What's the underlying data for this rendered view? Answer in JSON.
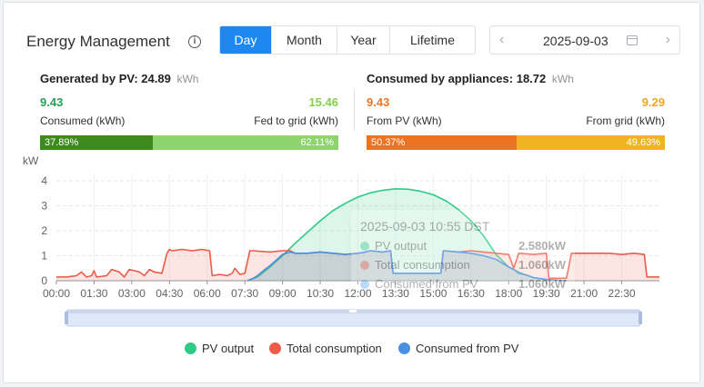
{
  "header": {
    "title": "Energy Management",
    "tabs": [
      {
        "label": "Day",
        "active": true
      },
      {
        "label": "Month",
        "active": false
      },
      {
        "label": "Year",
        "active": false
      },
      {
        "label": "Lifetime",
        "active": false
      }
    ],
    "date": "2025-09-03",
    "prev_symbol": "‹",
    "next_symbol": "›"
  },
  "generated": {
    "label": "Generated by PV:",
    "value": "24.89",
    "unit": "kWh",
    "consumed_value": "9.43",
    "fed_value": "15.46",
    "consumed_label": "Consumed (kWh)",
    "fed_label": "Fed to grid (kWh)",
    "consumed_pct": "37.89%",
    "fed_pct": "62.11%",
    "consumed_frac": 0.3789,
    "consumed_color": "#3d8b1e",
    "fed_color": "#8ed46e",
    "consumed_text_color": "#27a055",
    "fed_text_color": "#86cf4c"
  },
  "consumption": {
    "label": "Consumed by appliances:",
    "value": "18.72",
    "unit": "kWh",
    "pv_value": "9.43",
    "grid_value": "9.29",
    "pv_label": "From PV (kWh)",
    "grid_label": "From grid (kWh)",
    "pv_pct": "50.37%",
    "grid_pct": "49.63%",
    "pv_frac": 0.5037,
    "pv_color": "#ee7320",
    "grid_color": "#f0b423",
    "pv_text_color": "#e8772a",
    "grid_text_color": "#e9a825"
  },
  "tooltip": {
    "title": "2025-09-03 10:55 DST",
    "rows": [
      {
        "name": "PV output",
        "value": "2.580kW",
        "color": "#36c98a"
      },
      {
        "name": "Total consumption",
        "value": "1.060kW",
        "color": "#f06a5a"
      },
      {
        "name": "Consumed from PV",
        "value": "1.060kW",
        "color": "#4b9ff5"
      }
    ]
  },
  "chart_data": {
    "type": "area",
    "ylabel": "kW",
    "ylim": [
      0,
      4
    ],
    "yticks": [
      "0",
      "1",
      "2",
      "3",
      "4"
    ],
    "xlim": [
      0,
      24
    ],
    "xticks": [
      "00:00",
      "01:30",
      "03:00",
      "04:30",
      "06:00",
      "07:30",
      "09:00",
      "10:30",
      "12:00",
      "13:30",
      "15:00",
      "16:30",
      "18:00",
      "19:30",
      "21:00",
      "22:30"
    ],
    "grid": true,
    "legend_position": "bottom",
    "series": [
      {
        "name": "PV output",
        "color": "#2ecb86",
        "fill": "rgba(60,205,140,0.18)",
        "x": [
          7.6,
          8.0,
          8.5,
          9.0,
          9.5,
          10.0,
          10.5,
          11.0,
          11.5,
          12.0,
          12.5,
          13.0,
          13.5,
          14.0,
          14.5,
          15.0,
          15.5,
          16.0,
          16.5,
          17.0,
          17.5,
          18.0,
          18.5,
          19.0,
          19.5,
          20.0,
          20.3
        ],
        "y": [
          0.0,
          0.15,
          0.55,
          1.0,
          1.5,
          1.95,
          2.4,
          2.8,
          3.1,
          3.35,
          3.52,
          3.62,
          3.68,
          3.66,
          3.58,
          3.44,
          3.2,
          2.85,
          2.4,
          1.8,
          1.05,
          0.55,
          0.3,
          0.12,
          0.05,
          0.01,
          0.0
        ]
      },
      {
        "name": "Total consumption",
        "color": "#ee5a48",
        "fill": "rgba(240,110,95,0.18)",
        "x": [
          0.0,
          0.4,
          0.8,
          1.0,
          1.2,
          1.4,
          1.5,
          1.6,
          2.0,
          2.2,
          2.5,
          2.7,
          2.9,
          3.3,
          3.5,
          3.7,
          3.9,
          4.2,
          4.4,
          4.5,
          4.6,
          5.0,
          5.4,
          5.8,
          6.1,
          6.2,
          6.5,
          6.8,
          7.0,
          7.1,
          7.3,
          7.5,
          7.7,
          7.8,
          8.5,
          9.0,
          9.3,
          9.5,
          10.0,
          10.5,
          11.0,
          11.5,
          12.0,
          12.3,
          12.5,
          13.0,
          13.3,
          13.4,
          14.0,
          14.5,
          15.0,
          15.3,
          15.4,
          16.0,
          16.5,
          17.0,
          17.5,
          18.0,
          18.2,
          18.4,
          19.0,
          19.5,
          19.6,
          20.0,
          20.3,
          20.5,
          21.0,
          21.5,
          22.0,
          22.5,
          23.0,
          23.4,
          23.5,
          23.8,
          24.0
        ],
        "y": [
          0.15,
          0.15,
          0.2,
          0.35,
          0.15,
          0.2,
          0.4,
          0.15,
          0.2,
          0.45,
          0.35,
          0.15,
          0.45,
          0.35,
          0.2,
          0.45,
          0.35,
          0.3,
          1.1,
          1.25,
          1.2,
          1.25,
          1.2,
          1.25,
          1.2,
          0.2,
          0.25,
          0.2,
          0.3,
          0.5,
          0.25,
          0.3,
          1.2,
          1.2,
          1.15,
          1.2,
          1.2,
          1.1,
          1.1,
          1.15,
          1.1,
          1.05,
          1.1,
          1.15,
          1.2,
          1.15,
          1.2,
          0.3,
          0.3,
          0.3,
          0.3,
          0.3,
          1.2,
          1.15,
          1.2,
          1.15,
          1.1,
          1.05,
          0.5,
          1.1,
          1.05,
          1.1,
          0.1,
          0.1,
          0.1,
          1.1,
          1.1,
          1.1,
          1.1,
          1.05,
          1.1,
          1.05,
          0.15,
          0.15,
          0.15
        ]
      },
      {
        "name": "Consumed from PV",
        "color": "#4a90e2",
        "fill": "rgba(75,150,235,0.15)",
        "x": [
          7.6,
          7.8,
          8.0,
          8.3,
          8.5,
          9.0,
          9.3,
          9.5,
          10.0,
          10.5,
          11.0,
          11.5,
          12.0,
          12.3,
          12.5,
          13.0,
          13.3,
          13.4,
          14.0,
          14.5,
          15.0,
          15.3,
          15.4,
          16.0,
          16.5,
          17.0,
          17.5,
          18.0,
          18.2,
          18.4,
          18.8,
          19.0,
          19.5,
          19.6,
          20.0,
          20.3
        ],
        "y": [
          0.0,
          0.08,
          0.2,
          0.45,
          0.6,
          1.05,
          1.15,
          1.1,
          1.1,
          1.15,
          1.1,
          1.05,
          1.1,
          1.15,
          1.2,
          1.15,
          1.2,
          0.3,
          0.3,
          0.3,
          0.3,
          0.3,
          1.2,
          1.15,
          1.1,
          1.0,
          0.85,
          0.55,
          0.45,
          0.3,
          0.2,
          0.12,
          0.05,
          0.02,
          0.01,
          0.0
        ]
      }
    ]
  }
}
